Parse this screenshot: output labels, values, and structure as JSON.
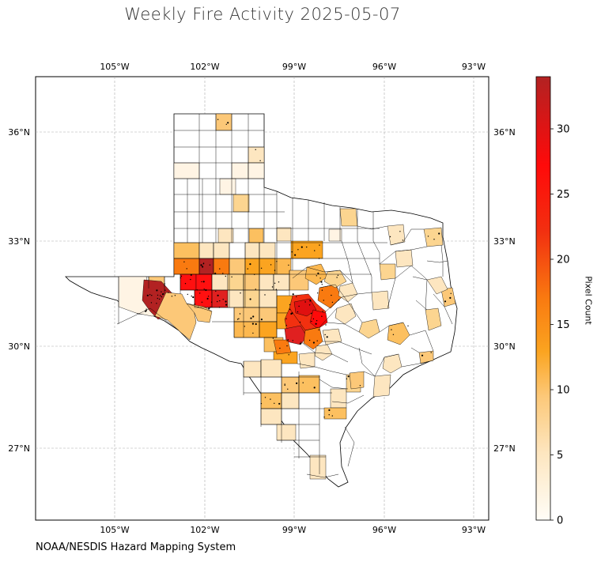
{
  "title": "Weekly Fire Activity 2025-05-07",
  "credit": "NOAA/NESDIS Hazard Mapping System",
  "colorbar": {
    "label": "Pixel Count",
    "min": 0,
    "max": 34,
    "ticks": [
      "0",
      "5",
      "10",
      "15",
      "20",
      "25",
      "30"
    ],
    "colors": [
      "#fffdf7",
      "#fde6c0",
      "#fcc878",
      "#fba420",
      "#f97a10",
      "#f23010",
      "#ff0a0a",
      "#b22222"
    ]
  },
  "map": {
    "region": "Texas counties",
    "lon_ticks": [
      "105°W",
      "102°W",
      "99°W",
      "96°W",
      "93°W"
    ],
    "lat_ticks": [
      "36°N",
      "33°N",
      "30°N",
      "27°N"
    ],
    "lon_range": [
      -107.7,
      -92.6
    ],
    "lat_range": [
      24.9,
      37.5
    ],
    "grid": true,
    "fire_detections_shown": true
  }
}
